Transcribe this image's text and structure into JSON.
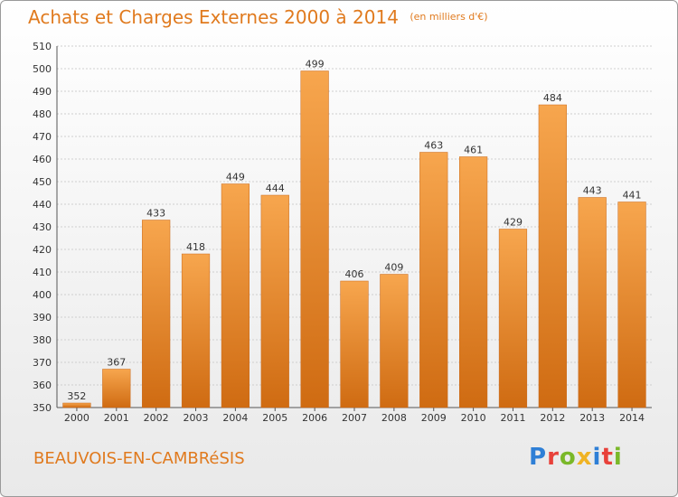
{
  "header": {
    "title": "Achats et Charges Externes 2000 à 2014",
    "unit": "(en milliers d'€)"
  },
  "footer": {
    "commune": "BEAUVOIS-EN-CAMBRéSIS",
    "logo_text": "Proxiti",
    "logo_colors": [
      "#2e7fd6",
      "#e8413a",
      "#7ab829",
      "#f0b323",
      "#2e7fd6",
      "#e8413a",
      "#7ab829"
    ]
  },
  "colors": {
    "bar_light": "#f7a64e",
    "bar_dark": "#cf6b12",
    "grid": "#cfcfcf",
    "title": "#e07a1e"
  },
  "chart_data": {
    "type": "bar",
    "title": "Achats et Charges Externes 2000 à 2014",
    "subtitle": "(en milliers d'€)",
    "categories": [
      "2000",
      "2001",
      "2002",
      "2003",
      "2004",
      "2005",
      "2006",
      "2007",
      "2008",
      "2009",
      "2010",
      "2011",
      "2012",
      "2013",
      "2014"
    ],
    "values": [
      352,
      367,
      433,
      418,
      449,
      444,
      499,
      406,
      409,
      463,
      461,
      429,
      484,
      443,
      441
    ],
    "ylim": [
      350,
      510
    ],
    "yticks": [
      350,
      360,
      370,
      380,
      390,
      400,
      410,
      420,
      430,
      440,
      450,
      460,
      470,
      480,
      490,
      500,
      510
    ],
    "grid": true,
    "legend": "none"
  }
}
